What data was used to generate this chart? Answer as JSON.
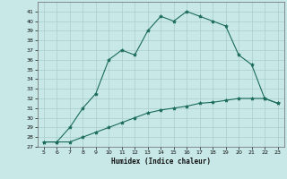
{
  "xlabel": "Humidex (Indice chaleur)",
  "x_values": [
    5,
    6,
    7,
    8,
    9,
    10,
    11,
    12,
    13,
    14,
    15,
    16,
    17,
    18,
    19,
    20,
    21,
    22,
    23
  ],
  "line1_y": [
    27.5,
    27.5,
    29.0,
    31.0,
    32.5,
    36.0,
    37.0,
    36.5,
    39.0,
    40.5,
    40.0,
    41.0,
    40.5,
    40.0,
    39.5,
    36.5,
    35.5,
    32.0,
    31.5
  ],
  "line2_y": [
    27.5,
    27.5,
    27.5,
    28.0,
    28.5,
    29.0,
    29.5,
    30.0,
    30.5,
    30.8,
    31.0,
    31.2,
    31.5,
    31.6,
    31.8,
    32.0,
    32.0,
    32.0,
    31.5
  ],
  "ylim": [
    27,
    42
  ],
  "xlim": [
    4.5,
    23.5
  ],
  "yticks": [
    27,
    28,
    29,
    30,
    31,
    32,
    33,
    34,
    35,
    36,
    37,
    38,
    39,
    40,
    41
  ],
  "xticks": [
    5,
    6,
    7,
    8,
    9,
    10,
    11,
    12,
    13,
    14,
    15,
    16,
    17,
    18,
    19,
    20,
    21,
    22,
    23
  ],
  "line_color": "#1a6b5a",
  "bg_color": "#c8e8e8",
  "grid_color": "#a8cccc"
}
